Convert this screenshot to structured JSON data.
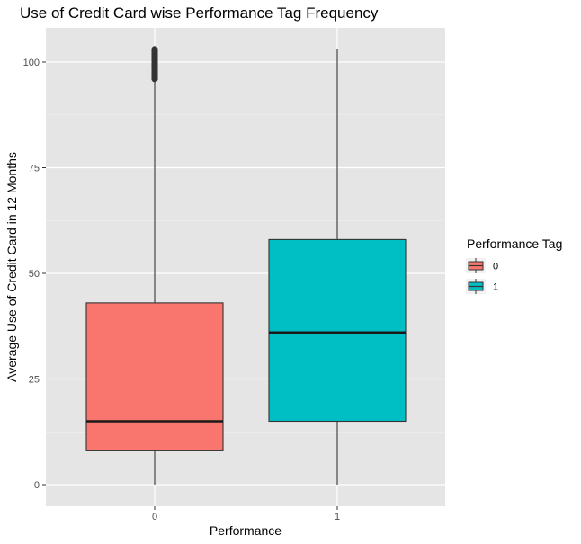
{
  "chart_data": {
    "type": "boxplot",
    "title": "Use of Credit Card wise Performance Tag Frequency",
    "xlabel": "Performance",
    "ylabel": "Average Use of Credit Card in 12 Months",
    "categories": [
      "0",
      "1"
    ],
    "ylim": [
      -5,
      108
    ],
    "yticks": [
      0,
      25,
      50,
      75,
      100
    ],
    "grid": true,
    "legend": {
      "title": "Performance Tag",
      "placement": "right",
      "entries": [
        "0",
        "1"
      ]
    },
    "series": [
      {
        "name": "0",
        "color": "#F8766D",
        "min": 0,
        "q1": 8,
        "median": 15,
        "q3": 43,
        "whisker_high": 96,
        "outliers": [
          96,
          96.5,
          97,
          97.5,
          98,
          98.5,
          99,
          99.5,
          100,
          100.5,
          101,
          101.5,
          102,
          102.5,
          103
        ]
      },
      {
        "name": "1",
        "color": "#00BFC4",
        "min": 0,
        "q1": 15,
        "median": 36,
        "q3": 58,
        "whisker_high": 103,
        "outliers": []
      }
    ]
  }
}
